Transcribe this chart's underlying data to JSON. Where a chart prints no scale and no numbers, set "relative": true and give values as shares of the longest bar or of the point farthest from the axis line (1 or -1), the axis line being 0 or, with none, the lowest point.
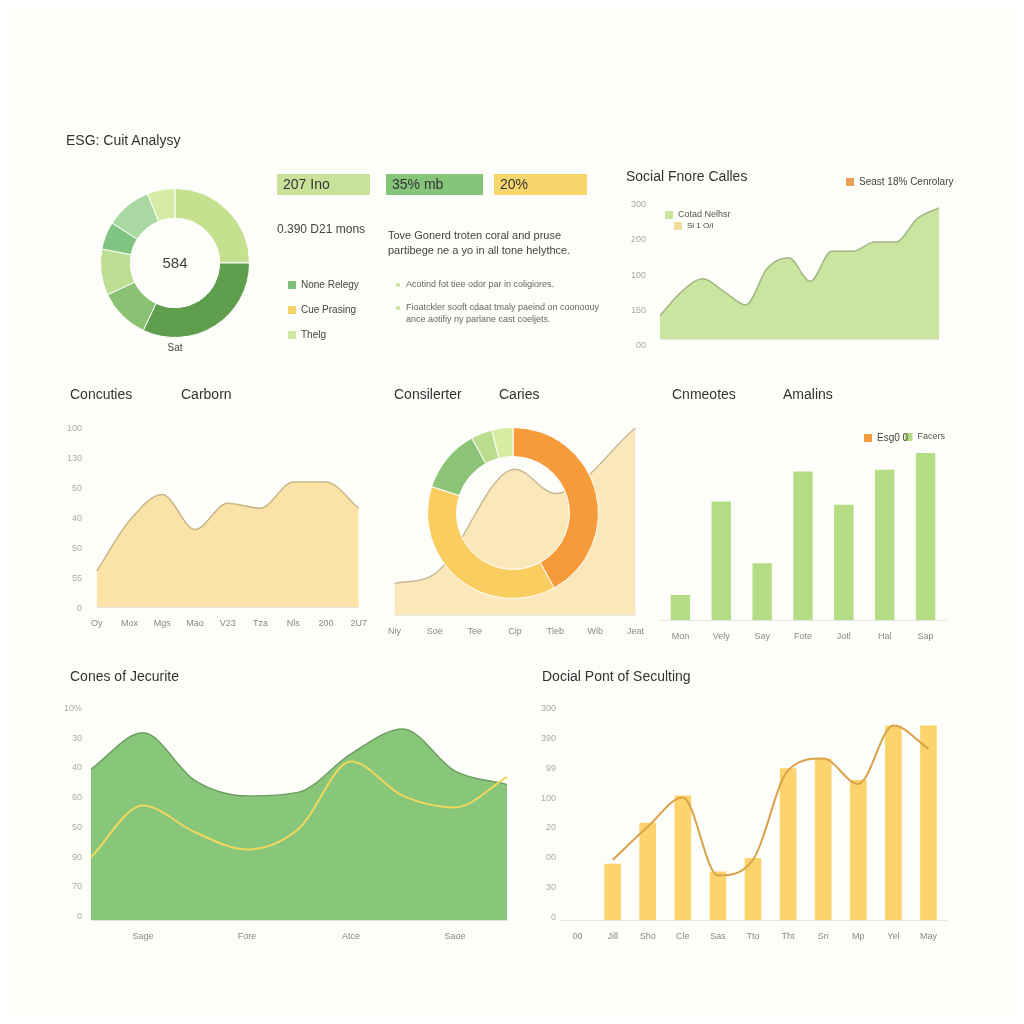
{
  "chart_data": [
    {
      "type": "donut",
      "title": "ESG: Cuit Analysy",
      "categories": [
        null,
        null,
        null,
        null,
        null,
        null,
        null
      ],
      "values": [
        25,
        32,
        11,
        10,
        6,
        10,
        6
      ],
      "colors": [
        "#c5e08f",
        "#5e9e4c",
        "#8bc173",
        "#bcdd92",
        "#7fc480",
        "#a9d8a2",
        "#d6eca6"
      ],
      "annotations": [
        "584",
        "Sat"
      ]
    },
    {
      "type": "other",
      "annotations": [
        "207 Ino",
        "35% mb",
        "20%",
        "0.390 D21 mons",
        "Tove Gonerd troten coral and pruse partibege ne a yo in all tone helythce.",
        "None Relegy",
        "Cue Prasing",
        "Thelg",
        "Acotind fot tiee odor par in coligiores.",
        "Fioatckler sooft cdaat tmaly paeind on coonoouy ance aotifiy ny parlane cast coeljets."
      ]
    },
    {
      "type": "area",
      "title": "Social Fnore Calles",
      "categories": [
        null,
        null,
        null,
        null,
        null,
        null,
        null,
        null,
        null,
        null,
        null,
        null,
        null,
        null
      ],
      "relative": true,
      "series": [
        {
          "name": "Cotad Nelhsr",
          "color": "#c9e5a0",
          "values": [
            0.18,
            0.36,
            0.46,
            0.36,
            0.26,
            0.54,
            0.62,
            0.44,
            0.67,
            0.67,
            0.74,
            0.74,
            0.92,
            1.0
          ]
        }
      ],
      "legend": "top left",
      "annotations": [
        "Seast 18% Cenrolary",
        "Sl 1 O/l",
        "300",
        "200",
        "100",
        "150",
        "00"
      ]
    },
    {
      "type": "area",
      "title": "Concuties",
      "subtitle": "Carborn",
      "categories": [
        "Oy",
        "Mox",
        "Mgs",
        "Mao",
        "V23",
        "Tza",
        "Nls",
        "200",
        "2U7"
      ],
      "relative": true,
      "series": [
        {
          "color": "#fbe3a8",
          "values": [
            0.29,
            0.69,
            0.9,
            0.62,
            0.83,
            0.79,
            1.0,
            1.0,
            0.79
          ]
        }
      ],
      "annotations": [
        "100",
        "130",
        "50",
        "40",
        "50",
        "55",
        "0"
      ]
    },
    {
      "type": "area",
      "title": "Consilerter",
      "subtitle": "Caries",
      "categories": [
        "Niy",
        "Soe",
        "Tee",
        "Cip",
        "Tleb",
        "Wib",
        "Jeat"
      ],
      "relative": true,
      "series": [
        {
          "color": "#fbe8ba",
          "values": [
            0.17,
            0.22,
            null,
            0.78,
            0.65,
            null,
            1.0
          ]
        }
      ]
    },
    {
      "type": "donut",
      "categories": [
        null,
        null,
        null,
        null,
        null
      ],
      "values": [
        42,
        38,
        12,
        4,
        4
      ],
      "colors": [
        "#f59b3a",
        "#f9cd60",
        "#8cc577",
        "#b9dc8d",
        "#d8ec9f"
      ]
    },
    {
      "type": "bar",
      "title": "Cnmeotes",
      "subtitle": "Amalins",
      "categories": [
        "Mon",
        "Vely",
        "Say",
        "Fote",
        "Jotl",
        "Hal",
        "Sap"
      ],
      "relative": true,
      "series": [
        {
          "name": "Facers",
          "color": "#b4dc84",
          "values": [
            0.15,
            0.71,
            0.34,
            0.89,
            0.69,
            0.9,
            1.0
          ]
        }
      ],
      "legend": "top right",
      "annotations": [
        "Esg0 0"
      ]
    },
    {
      "type": "area",
      "title": "Cones of Jecurite",
      "categories": [
        null,
        "Sage",
        null,
        "Fore",
        null,
        "Atce",
        null,
        "Saoe",
        null
      ],
      "relative": true,
      "series": [
        {
          "color": "#88c679",
          "values": [
            0.79,
            0.98,
            0.73,
            0.65,
            0.67,
            0.87,
            1.0,
            0.78,
            0.71
          ]
        },
        {
          "type": "line",
          "color": "#f0d860",
          "values": [
            0.33,
            0.6,
            0.46,
            0.37,
            0.48,
            0.83,
            0.65,
            0.59,
            0.75
          ]
        }
      ],
      "annotations": [
        "10%",
        "30",
        "40",
        "60",
        "50",
        "90",
        "70",
        "0"
      ]
    },
    {
      "type": "bar",
      "title": "Docial Pont of Seculting",
      "categories": [
        "00",
        "Jill",
        "Sho",
        "Cle",
        "Sas",
        "Tto",
        "Tht",
        "Sri",
        "Mp",
        "Yel",
        "May"
      ],
      "relative": true,
      "series": [
        {
          "color": "#fdd46c",
          "values": [
            null,
            0.29,
            0.5,
            0.64,
            0.25,
            0.32,
            0.78,
            0.83,
            0.72,
            1.0,
            1.0
          ]
        },
        {
          "type": "line",
          "color": "#d9a24a",
          "values": [
            null,
            0.31,
            0.48,
            0.63,
            0.23,
            0.31,
            0.77,
            0.83,
            0.7,
            1.0,
            0.88
          ]
        }
      ],
      "annotations": [
        "300",
        "390",
        "99",
        "100",
        "20",
        "00",
        "30",
        "0"
      ]
    }
  ]
}
